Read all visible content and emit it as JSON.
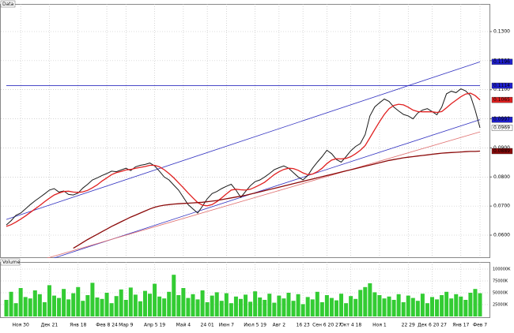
{
  "chart_data": {
    "type": "line",
    "main_label": "Data",
    "ylim": [
      0.0524,
      0.1395
    ],
    "yticks": [
      {
        "value": 0.06,
        "label": "0.0600"
      },
      {
        "value": 0.07,
        "label": "0.0700"
      },
      {
        "value": 0.08,
        "label": "0.0800"
      },
      {
        "value": 0.09,
        "label": "0.0900"
      },
      {
        "value": 0.1,
        "label": "0.1000"
      },
      {
        "value": 0.11,
        "label": "0.1100"
      },
      {
        "value": 0.12,
        "label": "0.1200"
      },
      {
        "value": 0.13,
        "label": "0.1300"
      }
    ],
    "grid": true,
    "categories": [
      null,
      null,
      null,
      "Ноя 30",
      null,
      null,
      null,
      null,
      null,
      "Дек 21",
      null,
      null,
      null,
      null,
      null,
      "Янв 18",
      null,
      null,
      null,
      null,
      null,
      "Фев 8 24",
      null,
      null,
      null,
      "Мар 9",
      null,
      null,
      null,
      null,
      null,
      "Апр 5 19",
      null,
      null,
      null,
      null,
      null,
      "Май 4",
      null,
      null,
      null,
      null,
      "24 01",
      null,
      null,
      null,
      "Июн 7",
      null,
      null,
      null,
      null,
      null,
      "Июл 5 19",
      null,
      null,
      null,
      null,
      "Авг 2",
      null,
      null,
      null,
      null,
      "16 23",
      null,
      null,
      null,
      null,
      "Сен 6 20 27",
      null,
      null,
      null,
      null,
      "Окт 4 18",
      null,
      null,
      null,
      null,
      null,
      "Ноя 1",
      null,
      null,
      null,
      null,
      null,
      "22 29",
      null,
      null,
      null,
      null,
      "Дек 6 20 27",
      null,
      null,
      null,
      null,
      null,
      "Янв 17",
      null,
      null,
      null,
      "Фев 7"
    ],
    "series": [
      {
        "color": "#1a1a1a",
        "values": [
          0.0635,
          0.065,
          0.0668,
          0.0676,
          0.069,
          0.0705,
          0.0718,
          0.073,
          0.0742,
          0.0755,
          0.076,
          0.0748,
          0.0752,
          0.074,
          0.0738,
          0.0745,
          0.0762,
          0.0775,
          0.079,
          0.0797,
          0.0805,
          0.0812,
          0.082,
          0.0818,
          0.0824,
          0.083,
          0.0822,
          0.0835,
          0.084,
          0.0843,
          0.0848,
          0.0838,
          0.082,
          0.08,
          0.079,
          0.0772,
          0.0755,
          0.073,
          0.0705,
          0.069,
          0.0676,
          0.07,
          0.0725,
          0.0743,
          0.075,
          0.076,
          0.0768,
          0.0775,
          0.0755,
          0.073,
          0.075,
          0.077,
          0.0784,
          0.079,
          0.08,
          0.0812,
          0.0825,
          0.0832,
          0.0838,
          0.083,
          0.0815,
          0.08,
          0.079,
          0.0805,
          0.083,
          0.0851,
          0.087,
          0.0892,
          0.088,
          0.086,
          0.0851,
          0.087,
          0.089,
          0.0905,
          0.0915,
          0.0946,
          0.101,
          0.1041,
          0.1055,
          0.1068,
          0.106,
          0.104,
          0.1027,
          0.1015,
          0.101,
          0.1,
          0.102,
          0.103,
          0.1035,
          0.1025,
          0.1014,
          0.104,
          0.1086,
          0.1095,
          0.109,
          0.1103,
          0.1096,
          0.108,
          0.103,
          0.0969
        ]
      },
      {
        "color": "#e02020",
        "values": [
          0.063,
          0.0636,
          0.0645,
          0.0655,
          0.0666,
          0.0678,
          0.069,
          0.0702,
          0.0715,
          0.0727,
          0.0738,
          0.0745,
          0.075,
          0.0751,
          0.0748,
          0.0747,
          0.0749,
          0.0754,
          0.0763,
          0.0773,
          0.0786,
          0.0797,
          0.0808,
          0.0815,
          0.0819,
          0.0824,
          0.0826,
          0.083,
          0.0833,
          0.0836,
          0.084,
          0.084,
          0.0835,
          0.0825,
          0.0812,
          0.0797,
          0.078,
          0.0763,
          0.0745,
          0.0728,
          0.0712,
          0.0703,
          0.0701,
          0.0705,
          0.0715,
          0.0728,
          0.0742,
          0.0755,
          0.0758,
          0.0756,
          0.0755,
          0.0758,
          0.0765,
          0.0773,
          0.0782,
          0.0795,
          0.0808,
          0.0818,
          0.0826,
          0.083,
          0.0829,
          0.0823,
          0.0814,
          0.0808,
          0.081,
          0.0818,
          0.083,
          0.0846,
          0.0858,
          0.0863,
          0.0862,
          0.0864,
          0.087,
          0.088,
          0.0892,
          0.0908,
          0.0935,
          0.0963,
          0.099,
          0.1015,
          0.1035,
          0.1046,
          0.105,
          0.1048,
          0.104,
          0.103,
          0.1025,
          0.1024,
          0.1024,
          0.1024,
          0.1022,
          0.1025,
          0.1038,
          0.1052,
          0.1064,
          0.1076,
          0.1085,
          0.1088,
          0.108,
          0.1065
        ]
      },
      {
        "color": "#8b0a0a",
        "values": [
          null,
          null,
          null,
          null,
          null,
          null,
          null,
          null,
          null,
          null,
          null,
          null,
          null,
          null,
          0.0555,
          0.0565,
          0.0575,
          0.0585,
          0.0594,
          0.0603,
          0.0612,
          0.0621,
          0.063,
          0.0638,
          0.0646,
          0.0654,
          0.0662,
          0.0669,
          0.0676,
          0.0683,
          0.069,
          0.0696,
          0.07,
          0.0703,
          0.0705,
          0.0707,
          0.0708,
          0.0709,
          0.071,
          0.0711,
          0.0712,
          0.0713,
          0.0715,
          0.0717,
          0.0719,
          0.0722,
          0.0725,
          0.0728,
          0.0731,
          0.0734,
          0.0737,
          0.0741,
          0.0745,
          0.0749,
          0.0753,
          0.0757,
          0.0761,
          0.0765,
          0.0769,
          0.0773,
          0.0777,
          0.0781,
          0.0785,
          0.0789,
          0.0793,
          0.0797,
          0.0801,
          0.0805,
          0.0809,
          0.0813,
          0.0817,
          0.0821,
          0.0825,
          0.0829,
          0.0833,
          0.0837,
          0.0841,
          0.0845,
          0.0849,
          0.0853,
          0.0857,
          0.086,
          0.0863,
          0.0866,
          0.0868,
          0.087,
          0.0872,
          0.0874,
          0.0876,
          0.0878,
          0.088,
          0.0882,
          0.0883,
          0.0884,
          0.0885,
          0.0886,
          0.0887,
          0.0888,
          0.0888,
          0.0889
        ]
      }
    ],
    "trendlines": [
      {
        "color": "#3030c0",
        "values": [
          0.0654,
          0.1196
        ]
      },
      {
        "color": "#3030c0",
        "values": [
          0.1114,
          0.1114
        ]
      },
      {
        "color": "#3030c0",
        "values": [
          0.0468,
          0.0997
        ]
      },
      {
        "color": "#e07070",
        "values": [
          0.048,
          0.0955
        ]
      }
    ],
    "price_markers": [
      {
        "value": 0.1196,
        "color": "#2020d0"
      },
      {
        "value": 0.1114,
        "color": "#2020d0"
      },
      {
        "value": 0.1065,
        "color": "#e02020"
      },
      {
        "value": 0.0997,
        "color": "#2020d0"
      },
      {
        "value": 0.0969,
        "color": "#ffffff"
      },
      {
        "value": 0.0889,
        "color": "#8b0a0a"
      }
    ],
    "volume": {
      "label": "Volume",
      "color": "#33cc33",
      "ylim": [
        0,
        115000
      ],
      "yticks": [
        {
          "value": 25000,
          "label": "25000K"
        },
        {
          "value": 50000,
          "label": "50000K"
        },
        {
          "value": 75000,
          "label": "75000K"
        },
        {
          "value": 100000,
          "label": "100000K"
        }
      ],
      "values": [
        35000,
        52000,
        28000,
        60000,
        41000,
        38000,
        55000,
        47000,
        30000,
        66000,
        44000,
        39000,
        58000,
        36000,
        49000,
        62000,
        33000,
        45000,
        71000,
        40000,
        37000,
        50000,
        28000,
        43000,
        57000,
        35000,
        61000,
        46000,
        32000,
        54000,
        48000,
        69000,
        42000,
        38000,
        52000,
        88000,
        45000,
        60000,
        39000,
        47000,
        36000,
        55000,
        30000,
        44000,
        51000,
        33000,
        49000,
        28000,
        42000,
        37000,
        46000,
        31000,
        53000,
        40000,
        35000,
        48000,
        29000,
        44000,
        38000,
        50000,
        33000,
        47000,
        26000,
        41000,
        36000,
        52000,
        30000,
        45000,
        39000,
        34000,
        48000,
        28000,
        43000,
        37000,
        56000,
        62000,
        70000,
        51000,
        45000,
        38000,
        42000,
        35000,
        47000,
        30000,
        44000,
        39000,
        33000,
        48000,
        28000,
        41000,
        36000,
        45000,
        52000,
        38000,
        47000,
        42000,
        35000,
        50000,
        58000,
        49000
      ]
    }
  }
}
